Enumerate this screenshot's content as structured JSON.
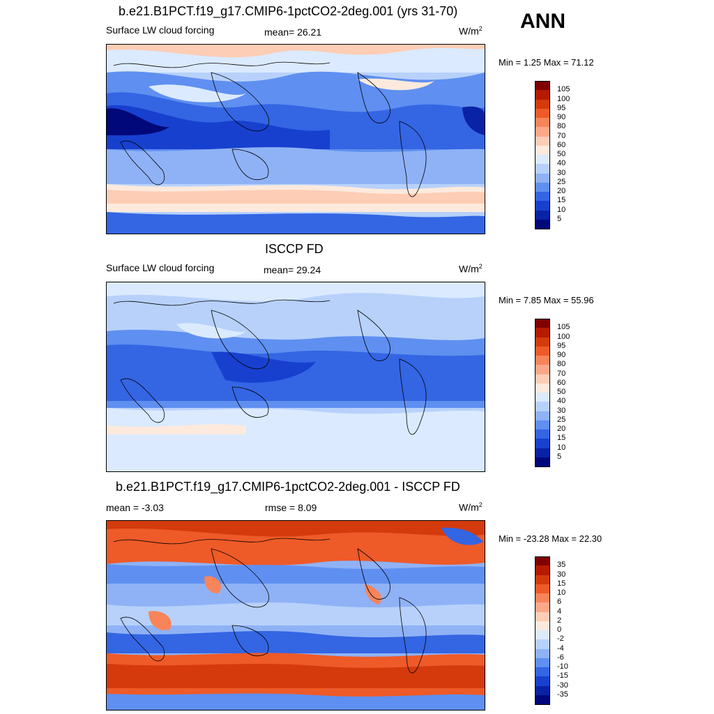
{
  "season": "ANN",
  "panels": [
    {
      "id": "model",
      "title": "b.e21.B1PCT.f19_g17.CMIP6-1pctCO2-2deg.001 (yrs 31-70)",
      "left_label": "Surface LW cloud forcing",
      "mid_label": "mean=  26.21",
      "units": "W/m",
      "units_exp": "2",
      "minmax": "Min =   1.25 Max =  71.12",
      "levels": [
        "105",
        "100",
        "95",
        "90",
        "80",
        "70",
        "60",
        "50",
        "40",
        "30",
        "25",
        "20",
        "15",
        "10",
        "5"
      ]
    },
    {
      "id": "obs",
      "title": "ISCCP FD",
      "left_label": "Surface LW cloud forcing",
      "mid_label": "mean=  29.24",
      "units": "W/m",
      "units_exp": "2",
      "minmax": "Min =   7.85 Max =  55.96",
      "levels": [
        "105",
        "100",
        "95",
        "90",
        "80",
        "70",
        "60",
        "50",
        "40",
        "30",
        "25",
        "20",
        "15",
        "10",
        "5"
      ]
    },
    {
      "id": "diff",
      "title": "b.e21.B1PCT.f19_g17.CMIP6-1pctCO2-2deg.001 - ISCCP FD",
      "left_label": "mean =  -3.03",
      "mid_label": "rmse =   8.09",
      "units": "W/m",
      "units_exp": "2",
      "minmax": "Min = -23.28 Max =  22.30",
      "levels": [
        "35",
        "30",
        "15",
        "10",
        "6",
        "4",
        "2",
        "0",
        "-2",
        "-4",
        "-6",
        "-10",
        "-15",
        "-30",
        "-35"
      ]
    }
  ],
  "colors": {
    "palette": [
      "#7f0000",
      "#b51b00",
      "#d43a0c",
      "#ee5a28",
      "#f8845a",
      "#fca888",
      "#fdcdb5",
      "#fdeadd",
      "#dbeaff",
      "#b7d1fb",
      "#8fb2f6",
      "#5f8ff0",
      "#3465e3",
      "#1840cf",
      "#0a22a6",
      "#00087a"
    ]
  }
}
